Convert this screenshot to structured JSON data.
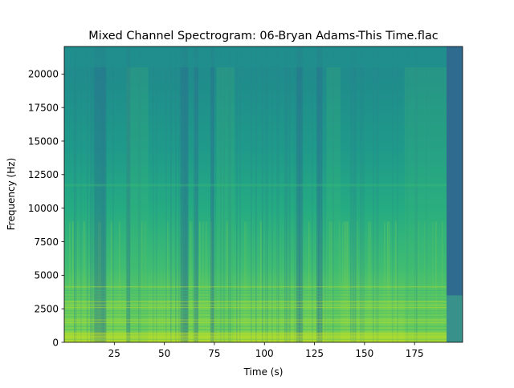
{
  "chart_data": {
    "type": "heatmap",
    "title": "Mixed Channel Spectrogram: 06-Bryan Adams-This Time.flac",
    "xlabel": "Time (s)",
    "ylabel": "Frequency (Hz)",
    "xlim": [
      0,
      199
    ],
    "ylim": [
      0,
      22050
    ],
    "x_ticks": [
      25,
      50,
      75,
      100,
      125,
      150,
      175
    ],
    "y_ticks": [
      0,
      2500,
      5000,
      7500,
      10000,
      12500,
      15000,
      17500,
      20000
    ],
    "colormap": "viridis",
    "grid": false,
    "track_end_s": 191,
    "quiet_spans_s": [
      [
        15,
        21
      ],
      [
        31,
        33
      ],
      [
        58,
        62
      ],
      [
        65,
        67
      ],
      [
        73,
        75
      ],
      [
        116,
        119
      ],
      [
        126,
        129
      ]
    ],
    "loud_spans_s": [
      [
        31,
        42
      ],
      [
        76,
        85
      ],
      [
        131,
        138
      ],
      [
        170,
        191
      ]
    ],
    "cutoff_frequency_hz": 20500
  }
}
